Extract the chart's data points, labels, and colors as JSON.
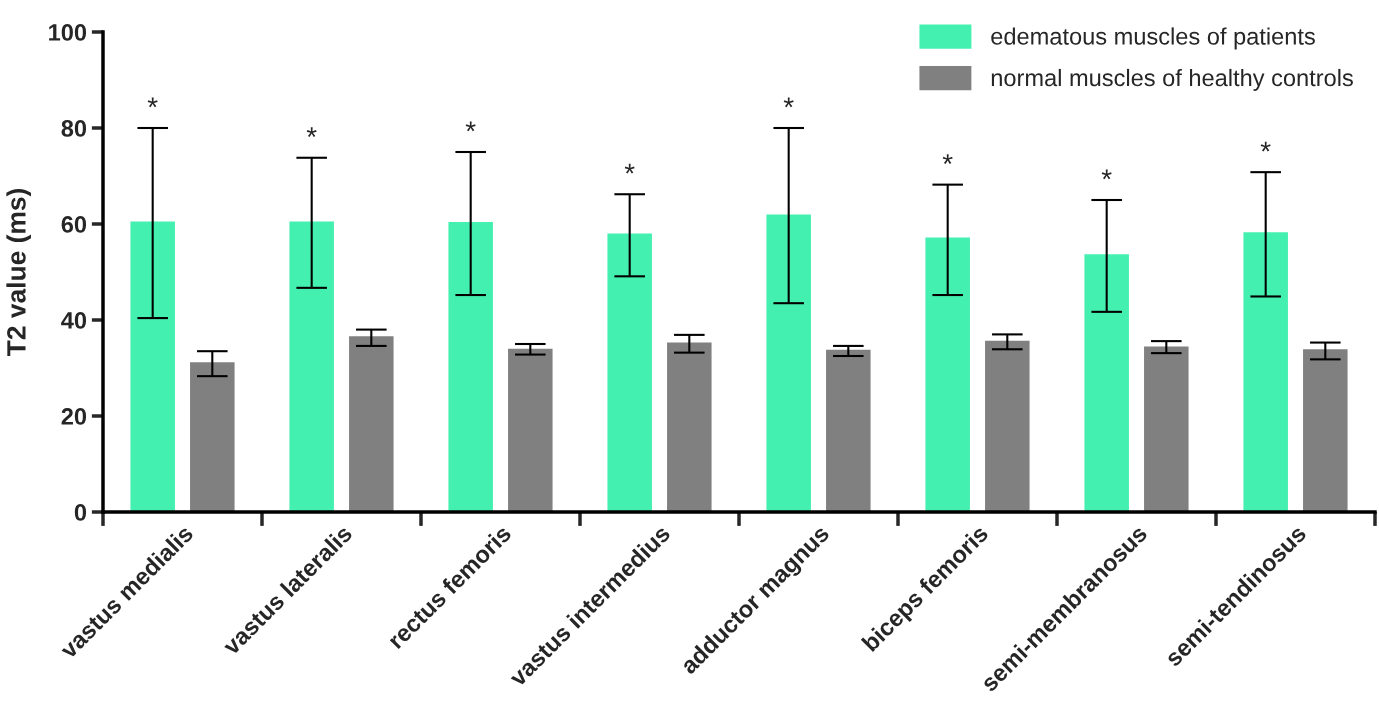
{
  "chart_data": {
    "type": "bar",
    "ylabel": "T2 value (ms)",
    "categories": [
      "vastus medialis",
      "vastus lateralis",
      "rectus femoris",
      "vastus intermedius",
      "adductor magnus",
      "biceps femoris",
      "semi-membranosus",
      "semi-tendinosus"
    ],
    "series": [
      {
        "name": "edematous muscles of patients",
        "color": "#44f0b0",
        "values": [
          60.5,
          60.5,
          60.4,
          58,
          62,
          57.2,
          53.7,
          58.3
        ],
        "errors": [
          [
            40.4,
            80
          ],
          [
            46.7,
            73.8
          ],
          [
            45.2,
            75
          ],
          [
            49.1,
            66.2
          ],
          [
            43.5,
            80
          ],
          [
            45.2,
            68.2
          ],
          [
            41.7,
            65
          ],
          [
            44.9,
            70.8
          ]
        ]
      },
      {
        "name": "normal muscles of healthy controls",
        "color": "#808080",
        "values": [
          31.2,
          36.6,
          34,
          35.3,
          33.8,
          35.7,
          34.5,
          33.9
        ],
        "errors": [
          [
            28.3,
            33.5
          ],
          [
            34.6,
            38
          ],
          [
            32.8,
            35
          ],
          [
            33.2,
            36.9
          ],
          [
            32.5,
            34.6
          ],
          [
            33.9,
            37
          ],
          [
            33.1,
            35.6
          ],
          [
            31.8,
            35.3
          ]
        ]
      }
    ],
    "ylim": [
      0,
      100
    ],
    "yticks": [
      0,
      20,
      40,
      60,
      80,
      100
    ],
    "grid": false,
    "legend": "top right",
    "annotations": [
      "*",
      "*",
      "*",
      "*",
      "*",
      "*",
      "*",
      "*"
    ]
  }
}
